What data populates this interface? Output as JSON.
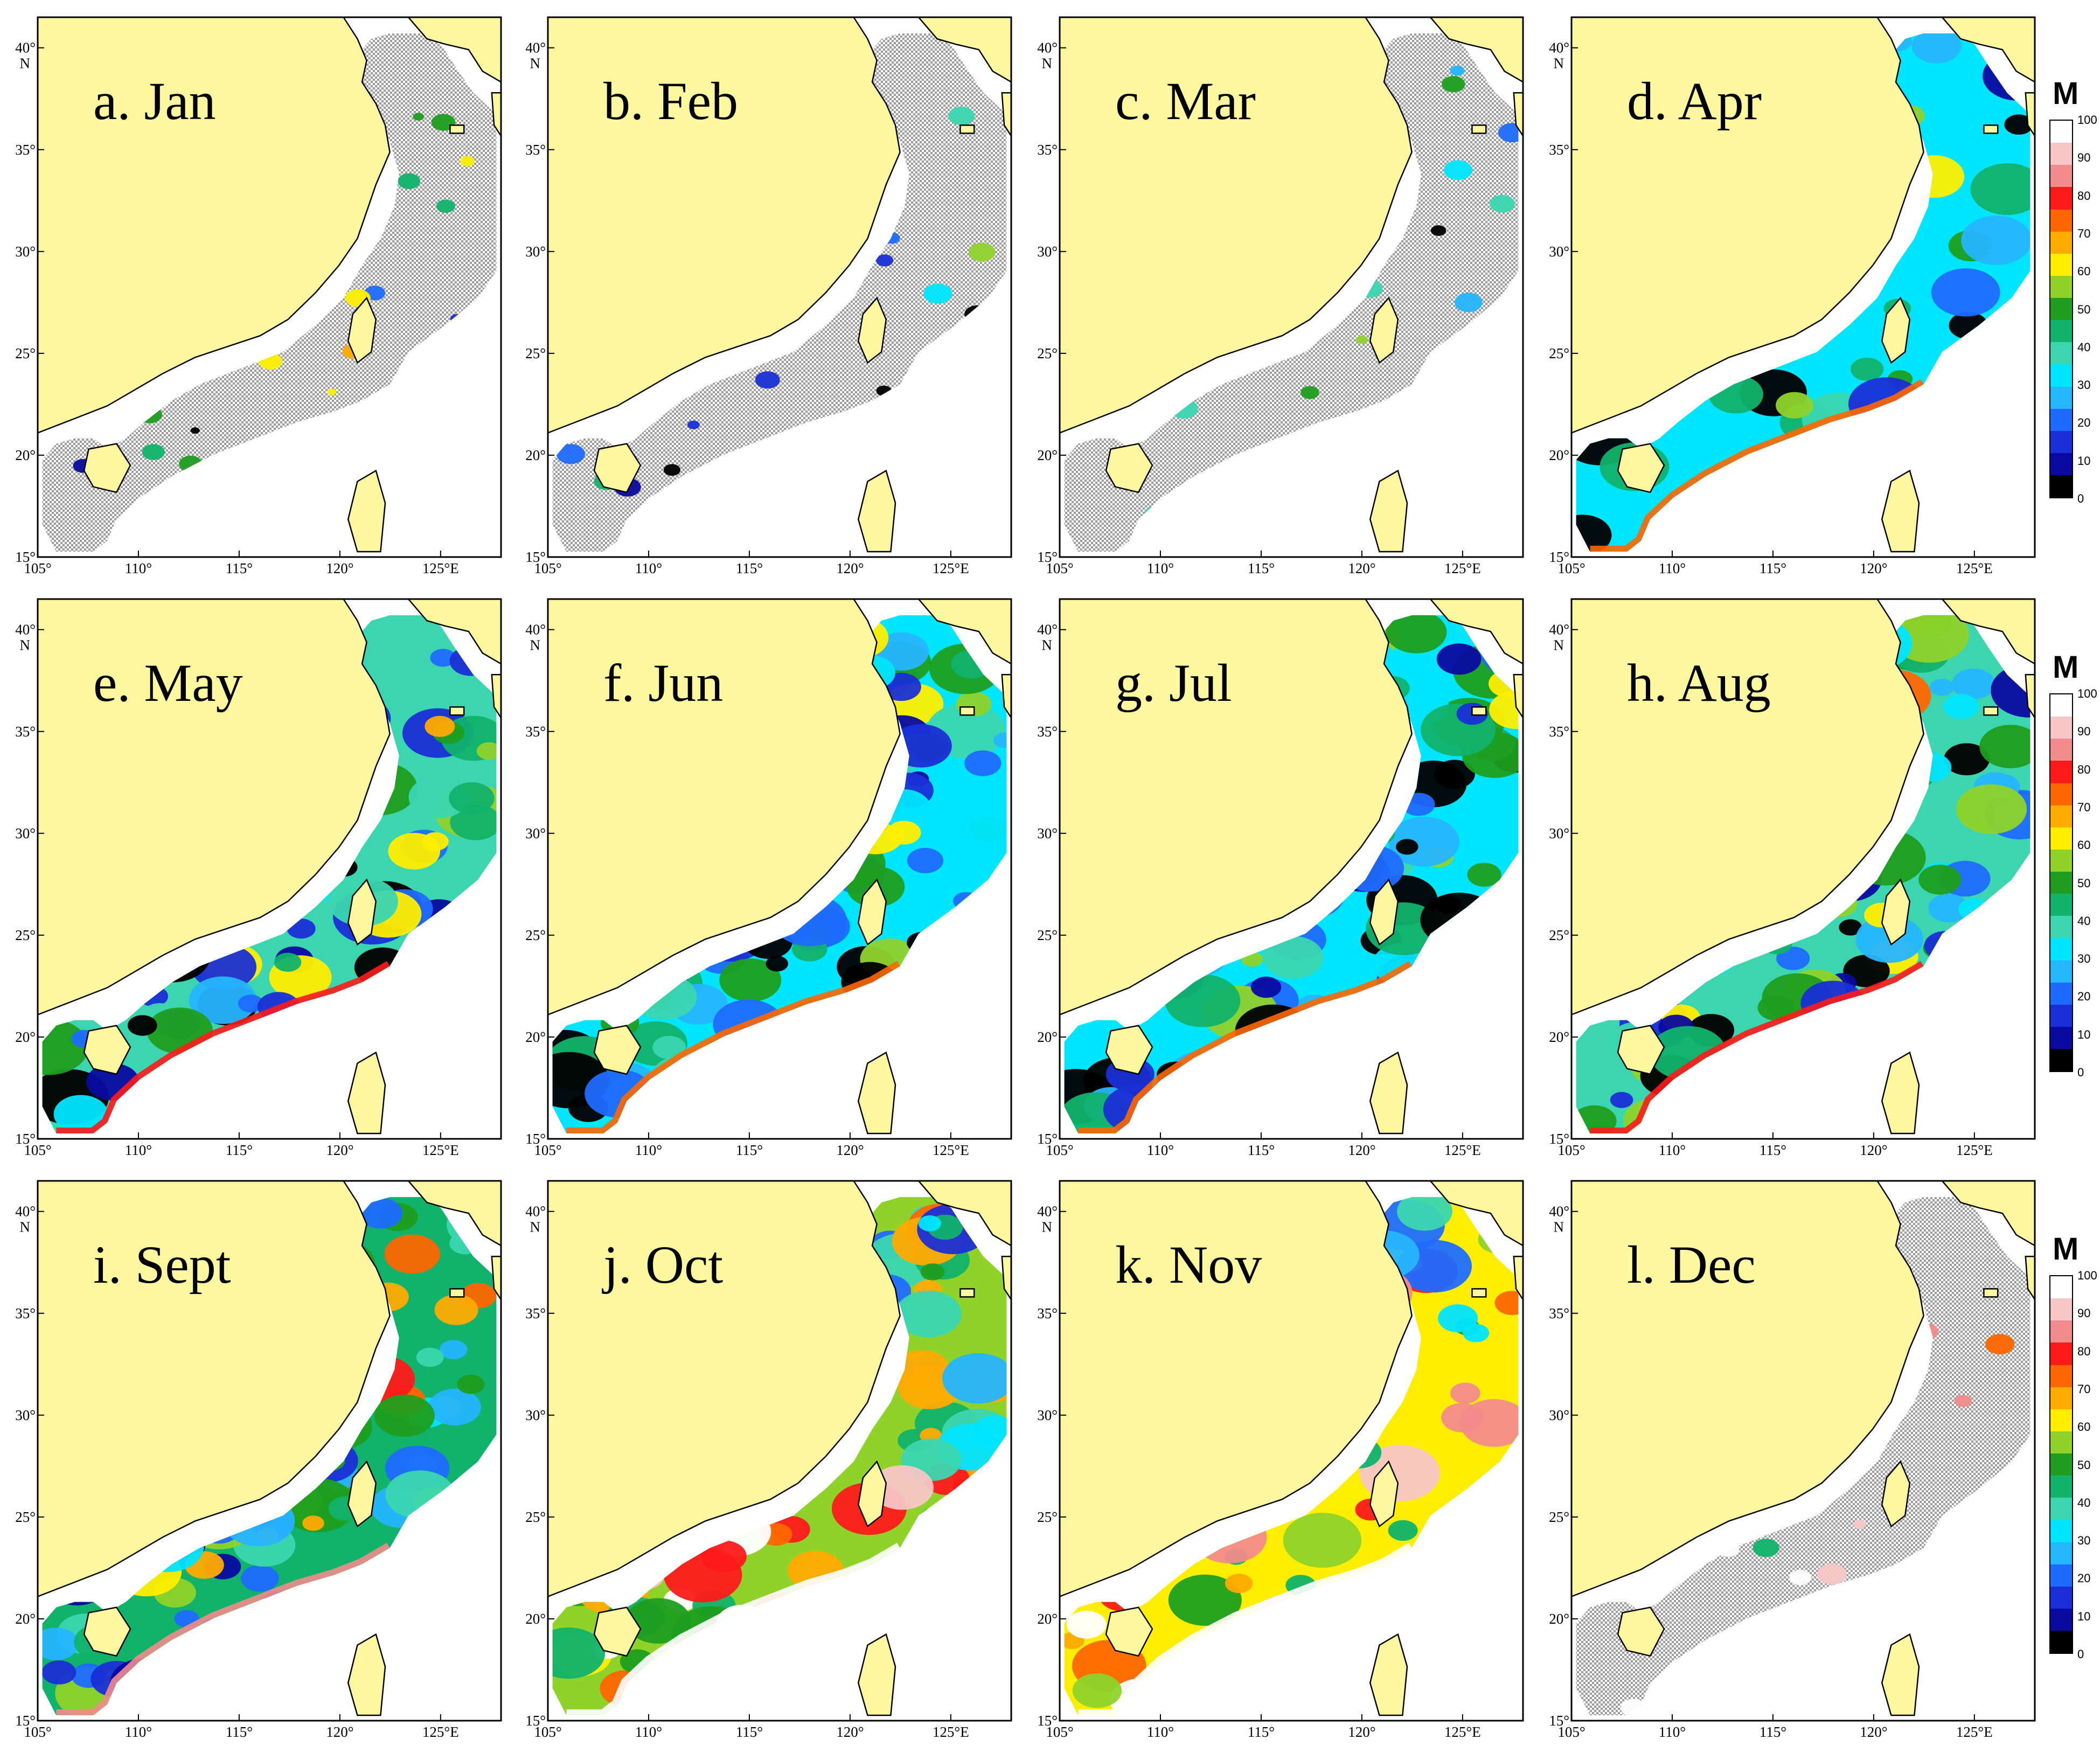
{
  "colors": {
    "land": "#fdf7a0",
    "deep_sea": "#b4b4b4",
    "no_data_hatch": "#9c9c9c",
    "coast": "#000000",
    "frame": "#000000"
  },
  "axes": {
    "lon_ticks": [
      "105°",
      "110°",
      "115°",
      "120°",
      "125°E"
    ],
    "lat_ticks": [
      "15°",
      "20°",
      "25°",
      "30°",
      "35°",
      "40°"
    ],
    "lat_north": "N"
  },
  "legend": {
    "title": "M",
    "min": 0,
    "max": 100,
    "labels": [
      "100",
      "90",
      "80",
      "70",
      "60",
      "50",
      "40",
      "30",
      "20",
      "10",
      "0"
    ],
    "colors_top_to_bottom": [
      "#ffffff",
      "#f7c6c6",
      "#f28b8b",
      "#ff1a1a",
      "#ff6600",
      "#ffaa00",
      "#ffee00",
      "#8fd32a",
      "#1f9e1f",
      "#11b26b",
      "#3bd6b0",
      "#00e5ff",
      "#26b5ff",
      "#1f6bff",
      "#1a2fd6",
      "#0a0aa0",
      "#000000"
    ]
  },
  "panels": [
    {
      "label": "a. Jan",
      "regime": "sparse",
      "mean_level": 40
    },
    {
      "label": "b. Feb",
      "regime": "sparse",
      "mean_level": 30
    },
    {
      "label": "c. Mar",
      "regime": "sparse",
      "mean_level": 25
    },
    {
      "label": "d. Apr",
      "regime": "partial",
      "mean_level": 30
    },
    {
      "label": "e. May",
      "regime": "full",
      "mean_level": 35
    },
    {
      "label": "f. Jun",
      "regime": "full",
      "mean_level": 30
    },
    {
      "label": "g. Jul",
      "regime": "full",
      "mean_level": 30
    },
    {
      "label": "h. Aug",
      "regime": "full",
      "mean_level": 35
    },
    {
      "label": "i. Sept",
      "regime": "full",
      "mean_level": 45
    },
    {
      "label": "j. Oct",
      "regime": "full",
      "mean_level": 55
    },
    {
      "label": "k. Nov",
      "regime": "partial",
      "mean_level": 60
    },
    {
      "label": "l. Dec",
      "regime": "sparse",
      "mean_level": 65
    }
  ]
}
